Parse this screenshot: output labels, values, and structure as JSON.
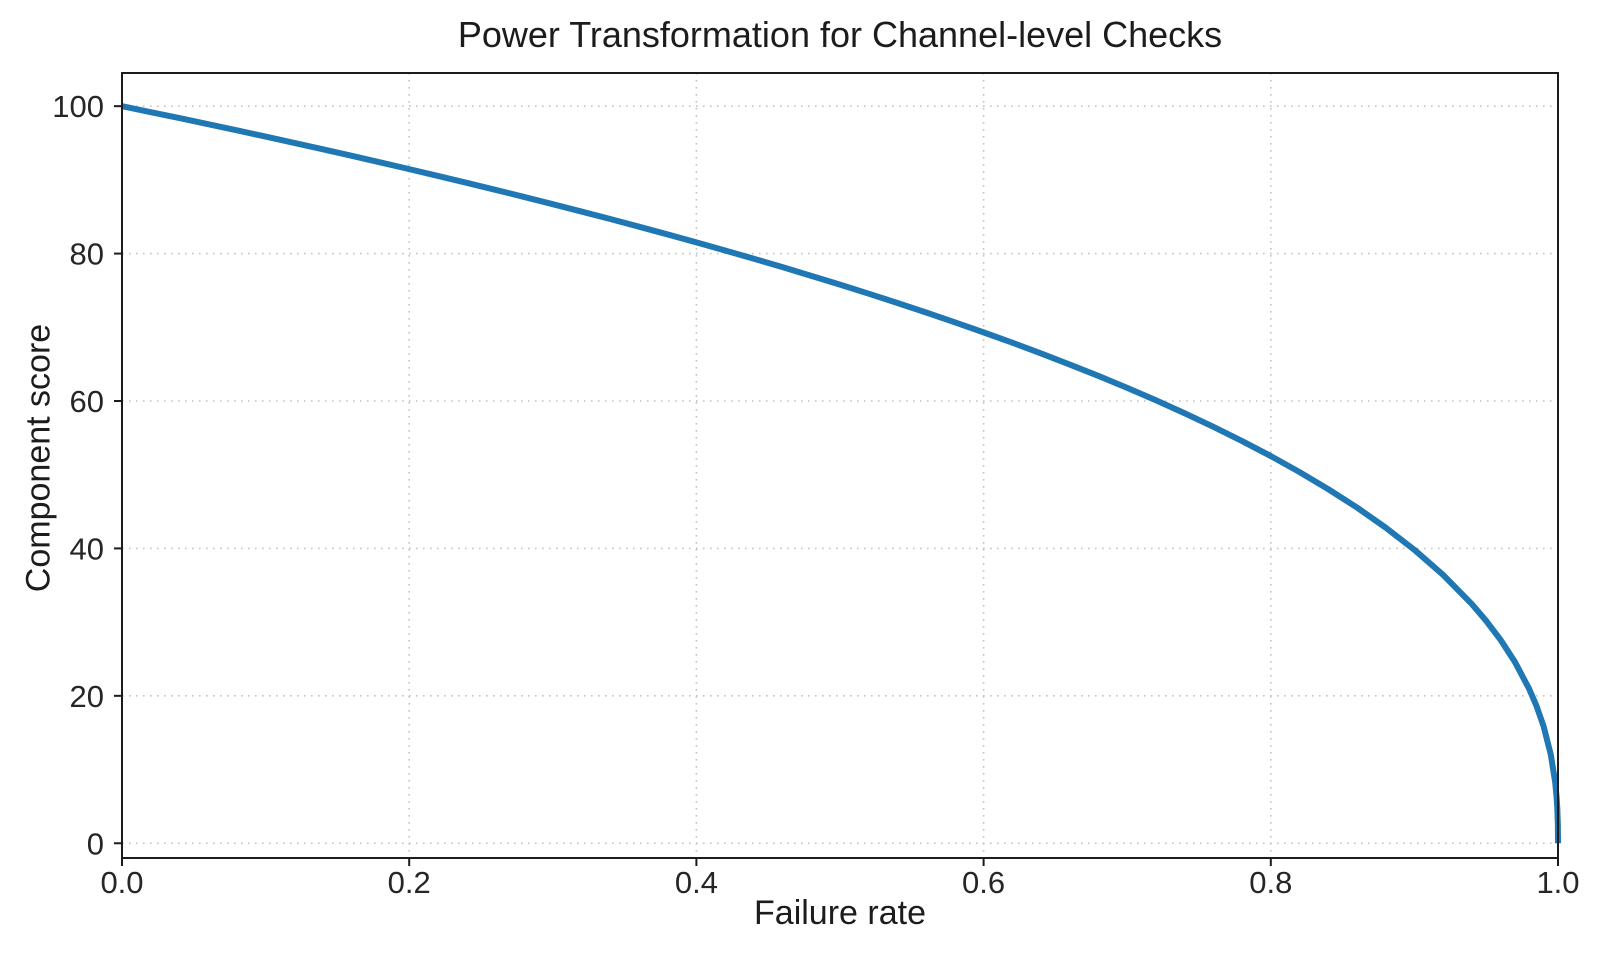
{
  "chart_data": {
    "type": "line",
    "title": "Power Transformation for Channel-level Checks",
    "xlabel": "Failure rate",
    "ylabel": "Component score",
    "xlim": [
      0,
      1
    ],
    "ylim": [
      -2,
      104.5
    ],
    "x_tick_values": [
      0,
      0.2,
      0.4,
      0.6,
      0.8,
      1.0
    ],
    "x_tick_labels": [
      "0.0",
      "0.2",
      "0.4",
      "0.6",
      "0.8",
      "1.0"
    ],
    "y_tick_values": [
      0,
      20,
      40,
      60,
      80,
      100
    ],
    "y_tick_labels": [
      "0",
      "20",
      "40",
      "60",
      "80",
      "100"
    ],
    "grid": {
      "visible": true,
      "style": "dotted",
      "color": "#c2c2c2"
    },
    "legend": "none",
    "axis_color": "#1c1c1c",
    "background_color": "#ffffff",
    "series": [
      {
        "name": "component-score-curve",
        "color": "#1f77b4",
        "line_width": 6,
        "points": [
          [
            0.0,
            100.0
          ],
          [
            0.02,
            99.19
          ],
          [
            0.04,
            98.38
          ],
          [
            0.06,
            97.56
          ],
          [
            0.08,
            96.72
          ],
          [
            0.1,
            95.87
          ],
          [
            0.12,
            95.01
          ],
          [
            0.14,
            94.15
          ],
          [
            0.16,
            93.26
          ],
          [
            0.18,
            92.37
          ],
          [
            0.2,
            91.46
          ],
          [
            0.22,
            90.54
          ],
          [
            0.24,
            89.6
          ],
          [
            0.26,
            88.65
          ],
          [
            0.28,
            87.69
          ],
          [
            0.3,
            86.7
          ],
          [
            0.32,
            85.7
          ],
          [
            0.34,
            84.69
          ],
          [
            0.36,
            83.65
          ],
          [
            0.38,
            82.6
          ],
          [
            0.4,
            81.52
          ],
          [
            0.42,
            80.42
          ],
          [
            0.44,
            79.3
          ],
          [
            0.46,
            78.16
          ],
          [
            0.48,
            76.98
          ],
          [
            0.5,
            75.79
          ],
          [
            0.52,
            74.56
          ],
          [
            0.54,
            73.3
          ],
          [
            0.56,
            72.01
          ],
          [
            0.58,
            70.68
          ],
          [
            0.6,
            69.31
          ],
          [
            0.62,
            67.91
          ],
          [
            0.64,
            66.45
          ],
          [
            0.66,
            64.95
          ],
          [
            0.68,
            63.4
          ],
          [
            0.7,
            61.78
          ],
          [
            0.72,
            60.1
          ],
          [
            0.74,
            58.34
          ],
          [
            0.76,
            56.5
          ],
          [
            0.78,
            54.57
          ],
          [
            0.8,
            52.53
          ],
          [
            0.82,
            50.36
          ],
          [
            0.84,
            48.04
          ],
          [
            0.86,
            45.55
          ],
          [
            0.88,
            42.82
          ],
          [
            0.9,
            39.81
          ],
          [
            0.92,
            36.41
          ],
          [
            0.94,
            32.45
          ],
          [
            0.95,
            30.17
          ],
          [
            0.96,
            27.6
          ],
          [
            0.97,
            24.6
          ],
          [
            0.98,
            20.91
          ],
          [
            0.985,
            18.64
          ],
          [
            0.99,
            15.85
          ],
          [
            0.995,
            12.01
          ],
          [
            0.998,
            8.33
          ],
          [
            0.999,
            6.31
          ],
          [
            0.9995,
            4.78
          ],
          [
            0.9999,
            2.51
          ],
          [
            1.0,
            0.0
          ]
        ]
      }
    ]
  }
}
